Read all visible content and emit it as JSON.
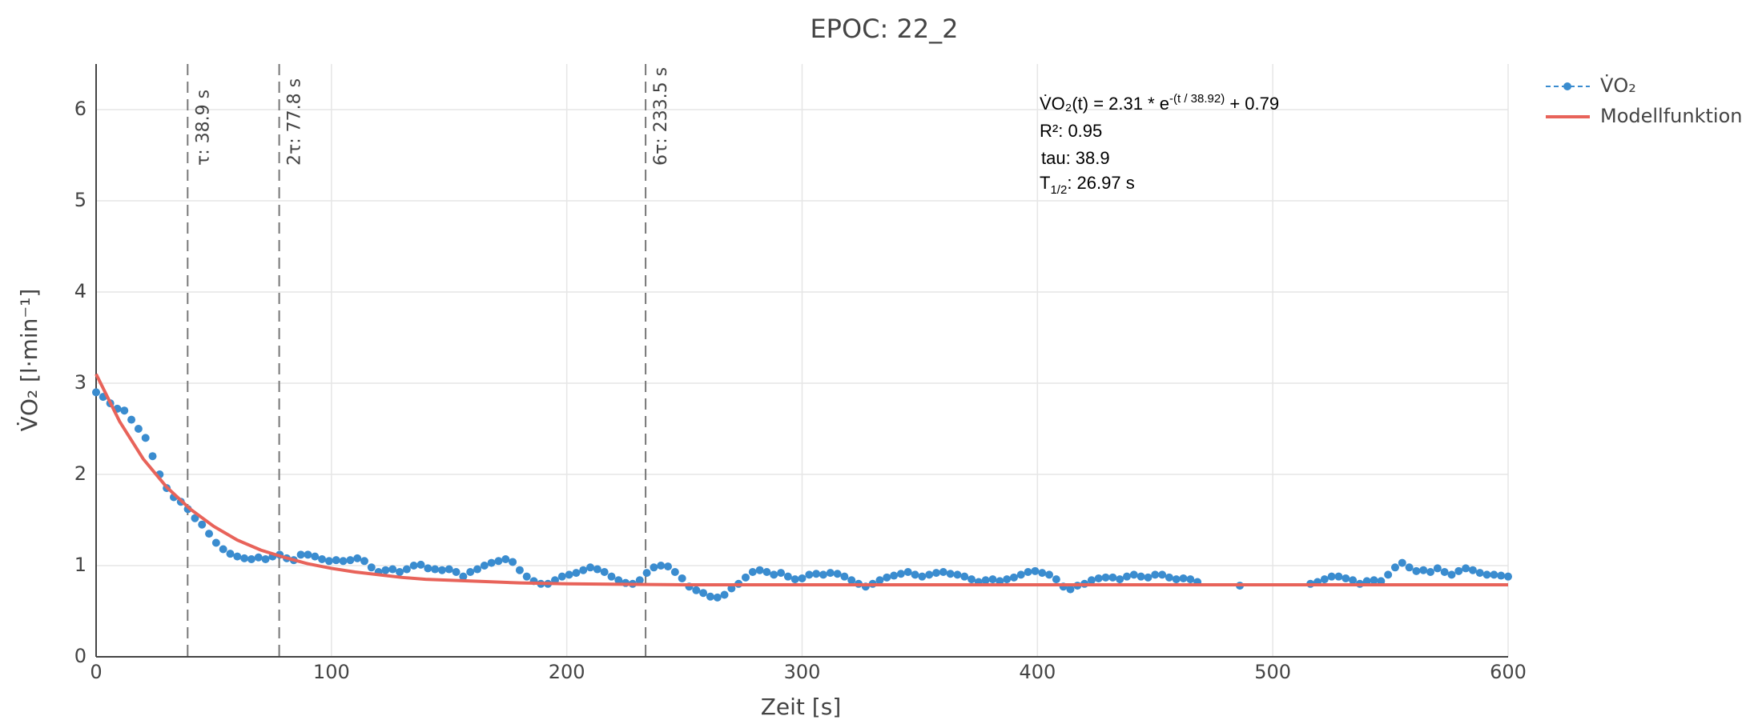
{
  "chart_data": {
    "type": "scatter",
    "title": "EPOC: 22_2",
    "xlabel": "Zeit [s]",
    "ylabel": "V̇O₂ [l·min⁻¹]",
    "xlim": [
      0,
      600
    ],
    "ylim": [
      0,
      6.5
    ],
    "xticks": [
      0,
      100,
      200,
      300,
      400,
      500,
      600
    ],
    "yticks": [
      0,
      1,
      2,
      3,
      4,
      5,
      6
    ],
    "grid": true,
    "legend": "top-right",
    "series": [
      {
        "name": "V̇O₂",
        "color": "#3a8ccf",
        "mode": "markers",
        "x": [
          0,
          3,
          6,
          9,
          12,
          15,
          18,
          21,
          24,
          27,
          30,
          33,
          36,
          39,
          42,
          45,
          48,
          51,
          54,
          57,
          60,
          63,
          66,
          69,
          72,
          75,
          78,
          81,
          84,
          87,
          90,
          93,
          96,
          99,
          102,
          105,
          108,
          111,
          114,
          117,
          120,
          123,
          126,
          129,
          132,
          135,
          138,
          141,
          144,
          147,
          150,
          153,
          156,
          159,
          162,
          165,
          168,
          171,
          174,
          177,
          180,
          183,
          186,
          189,
          192,
          195,
          198,
          201,
          204,
          207,
          210,
          213,
          216,
          219,
          222,
          225,
          228,
          231,
          234,
          237,
          240,
          243,
          246,
          249,
          252,
          255,
          258,
          261,
          264,
          267,
          270,
          273,
          276,
          279,
          282,
          285,
          288,
          291,
          294,
          297,
          300,
          303,
          306,
          309,
          312,
          315,
          318,
          321,
          324,
          327,
          330,
          333,
          336,
          339,
          342,
          345,
          348,
          351,
          354,
          357,
          360,
          363,
          366,
          369,
          372,
          375,
          378,
          381,
          384,
          387,
          390,
          393,
          396,
          399,
          402,
          405,
          408,
          411,
          414,
          417,
          420,
          423,
          426,
          429,
          432,
          435,
          438,
          441,
          444,
          447,
          450,
          453,
          456,
          459,
          462,
          465,
          468,
          486,
          516,
          519,
          522,
          525,
          528,
          531,
          534,
          537,
          540,
          543,
          546,
          549,
          552,
          555,
          558,
          561,
          564,
          567,
          570,
          573,
          576,
          579,
          582,
          585,
          588,
          591,
          594,
          597,
          600
        ],
        "values": [
          2.9,
          2.85,
          2.78,
          2.72,
          2.7,
          2.6,
          2.5,
          2.4,
          2.2,
          2.0,
          1.85,
          1.75,
          1.7,
          1.62,
          1.52,
          1.45,
          1.35,
          1.25,
          1.18,
          1.13,
          1.1,
          1.08,
          1.07,
          1.09,
          1.07,
          1.1,
          1.12,
          1.08,
          1.06,
          1.12,
          1.12,
          1.1,
          1.07,
          1.05,
          1.06,
          1.05,
          1.06,
          1.08,
          1.05,
          0.98,
          0.93,
          0.95,
          0.96,
          0.93,
          0.96,
          1.0,
          1.01,
          0.97,
          0.96,
          0.95,
          0.96,
          0.93,
          0.88,
          0.93,
          0.96,
          1.0,
          1.03,
          1.05,
          1.07,
          1.04,
          0.95,
          0.88,
          0.83,
          0.8,
          0.8,
          0.84,
          0.88,
          0.9,
          0.92,
          0.95,
          0.98,
          0.96,
          0.93,
          0.88,
          0.84,
          0.81,
          0.8,
          0.84,
          0.92,
          0.98,
          1.0,
          0.99,
          0.93,
          0.86,
          0.77,
          0.73,
          0.7,
          0.66,
          0.65,
          0.68,
          0.75,
          0.8,
          0.87,
          0.93,
          0.95,
          0.93,
          0.9,
          0.92,
          0.88,
          0.85,
          0.86,
          0.9,
          0.91,
          0.9,
          0.92,
          0.91,
          0.88,
          0.84,
          0.8,
          0.77,
          0.8,
          0.84,
          0.87,
          0.89,
          0.91,
          0.93,
          0.9,
          0.88,
          0.9,
          0.92,
          0.93,
          0.91,
          0.9,
          0.88,
          0.85,
          0.82,
          0.84,
          0.85,
          0.83,
          0.85,
          0.87,
          0.9,
          0.93,
          0.94,
          0.92,
          0.9,
          0.85,
          0.77,
          0.74,
          0.78,
          0.8,
          0.84,
          0.86,
          0.87,
          0.87,
          0.85,
          0.88,
          0.9,
          0.88,
          0.87,
          0.9,
          0.9,
          0.87,
          0.85,
          0.86,
          0.85,
          0.82,
          0.78,
          0.8,
          0.82,
          0.85,
          0.88,
          0.88,
          0.86,
          0.84,
          0.8,
          0.83,
          0.84,
          0.83,
          0.9,
          0.98,
          1.03,
          0.98,
          0.94,
          0.95,
          0.93,
          0.97,
          0.93,
          0.9,
          0.94,
          0.97,
          0.95,
          0.92,
          0.9,
          0.9,
          0.89,
          0.88
        ]
      },
      {
        "name": "Modellfunktion",
        "color": "#e8635a",
        "mode": "line",
        "x": [
          0,
          10,
          20,
          30,
          40,
          50,
          60,
          70,
          80,
          90,
          100,
          110,
          120,
          130,
          140,
          150,
          160,
          180,
          200,
          250,
          300,
          400,
          500,
          600
        ],
        "values": [
          3.1,
          2.58,
          2.17,
          1.86,
          1.62,
          1.43,
          1.28,
          1.17,
          1.09,
          1.02,
          0.97,
          0.93,
          0.9,
          0.87,
          0.85,
          0.84,
          0.83,
          0.81,
          0.8,
          0.79,
          0.79,
          0.79,
          0.79,
          0.79
        ]
      }
    ],
    "vlines": [
      {
        "x": 38.9,
        "label": "τ: 38.9 s"
      },
      {
        "x": 77.8,
        "label": "2τ: 77.8 s"
      },
      {
        "x": 233.5,
        "label": "6τ: 233.5 s"
      }
    ],
    "annotation": {
      "formula": [
        "V̇O₂(t) = 2.31 * e",
        "-(t / 38.92)",
        " + 0.79"
      ],
      "r2": "R²: 0.95",
      "tau": "tau: 38.9",
      "half_life": [
        "T",
        "1/2",
        ": 26.97 s"
      ]
    }
  }
}
